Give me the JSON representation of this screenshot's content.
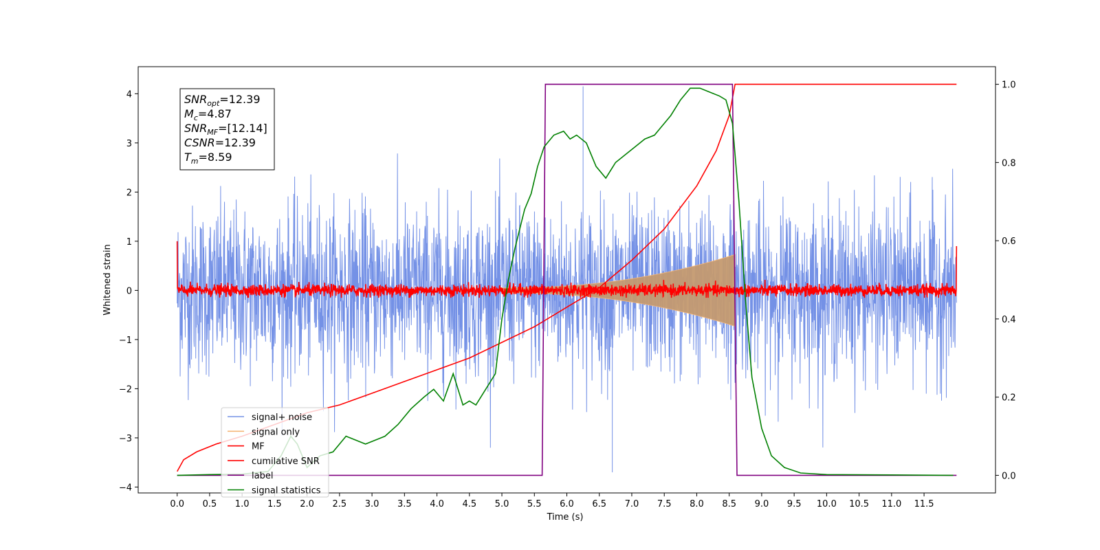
{
  "chart_data": {
    "type": "line",
    "xlabel": "Time (s)",
    "ylabel_left": "Whitened strain",
    "ylabel_right": "",
    "xlim": [
      -0.6,
      12.6
    ],
    "ylim_left": [
      -4.12,
      4.55
    ],
    "ylim_right": [
      -0.045,
      1.045
    ],
    "x_ticks": [
      0.0,
      0.5,
      1.0,
      1.5,
      2.0,
      2.5,
      3.0,
      3.5,
      4.0,
      4.5,
      5.0,
      5.5,
      6.0,
      6.5,
      7.0,
      7.5,
      8.0,
      8.5,
      9.0,
      9.5,
      10.0,
      10.5,
      11.0,
      11.5
    ],
    "x_tick_labels": [
      "0.0",
      "0.5",
      "1.0",
      "1.5",
      "2.0",
      "2.5",
      "3.0",
      "3.5",
      "4.0",
      "4.5",
      "5.0",
      "5.5",
      "6.0",
      "6.5",
      "7.0",
      "7.5",
      "8.0",
      "8.5",
      "9.0",
      "9.5",
      "10.0",
      "10.5",
      "11.0",
      "11.5"
    ],
    "y_ticks_left": [
      -4,
      -3,
      -2,
      -1,
      0,
      1,
      2,
      3,
      4
    ],
    "y_tick_labels_left": [
      "−4",
      "−3",
      "−2",
      "−1",
      "0",
      "1",
      "2",
      "3",
      "4"
    ],
    "y_ticks_right": [
      0.0,
      0.2,
      0.4,
      0.6,
      0.8,
      1.0
    ],
    "y_tick_labels_right": [
      "0.0",
      "0.2",
      "0.4",
      "0.6",
      "0.8",
      "1.0"
    ],
    "grid": false,
    "legend_placement": "lower-left",
    "annotation": {
      "lines": [
        {
          "sym": "SNR",
          "sub": "opt",
          "rest": "=12.39"
        },
        {
          "sym": "M",
          "sub": "c",
          "rest": "=4.87"
        },
        {
          "sym": "SNR",
          "sub": "MF",
          "rest": "=[12.14]"
        },
        {
          "sym": "CSNR",
          "sub": "",
          "rest": "=12.39"
        },
        {
          "sym": "T",
          "sub": "m",
          "rest": "=8.59"
        }
      ]
    },
    "series": [
      {
        "name": "signal+ noise",
        "color": "#7491e6",
        "axis": "left",
        "kind": "noise",
        "x_range": [
          0.0,
          12.0
        ],
        "amplitude_std": 0.85,
        "peak_min": -3.7,
        "peak_max": 4.15
      },
      {
        "name": "signal only",
        "color": "#f5b676",
        "axis": "left",
        "kind": "chirp",
        "x_range": [
          5.0,
          8.59
        ],
        "envelope_max": 0.68
      },
      {
        "name": "MF",
        "color": "#ff0000",
        "axis": "left",
        "kind": "noise",
        "x_range": [
          0.0,
          12.0
        ],
        "amplitude_std": 0.06,
        "edge_values": [
          1.0,
          0.9
        ]
      },
      {
        "name": "cumilative SNR",
        "color": "#ff0000",
        "axis": "right",
        "kind": "curve",
        "x_range": [
          0.0,
          12.0
        ],
        "points": [
          [
            0.0,
            0.01
          ],
          [
            0.1,
            0.04
          ],
          [
            0.3,
            0.06
          ],
          [
            0.6,
            0.08
          ],
          [
            1.0,
            0.1
          ],
          [
            1.5,
            0.13
          ],
          [
            2.0,
            0.16
          ],
          [
            2.5,
            0.18
          ],
          [
            3.0,
            0.21
          ],
          [
            3.5,
            0.24
          ],
          [
            4.0,
            0.27
          ],
          [
            4.5,
            0.3
          ],
          [
            5.0,
            0.34
          ],
          [
            5.5,
            0.38
          ],
          [
            6.0,
            0.43
          ],
          [
            6.5,
            0.48
          ],
          [
            7.0,
            0.55
          ],
          [
            7.5,
            0.63
          ],
          [
            8.0,
            0.74
          ],
          [
            8.3,
            0.83
          ],
          [
            8.5,
            0.92
          ],
          [
            8.59,
            1.0
          ],
          [
            12.0,
            1.0
          ]
        ]
      },
      {
        "name": "label",
        "color": "#800080",
        "axis": "right",
        "kind": "step",
        "points": [
          [
            0.0,
            0.0
          ],
          [
            5.62,
            0.0
          ],
          [
            5.67,
            1.0
          ],
          [
            8.55,
            1.0
          ],
          [
            8.62,
            0.0
          ],
          [
            12.0,
            0.0
          ]
        ]
      },
      {
        "name": "signal statistics",
        "color": "#008000",
        "axis": "right",
        "kind": "curve",
        "points": [
          [
            0.0,
            0.0
          ],
          [
            0.5,
            0.002
          ],
          [
            1.0,
            0.003
          ],
          [
            1.4,
            0.01
          ],
          [
            1.6,
            0.05
          ],
          [
            1.75,
            0.1
          ],
          [
            1.85,
            0.08
          ],
          [
            2.0,
            0.02
          ],
          [
            2.2,
            0.05
          ],
          [
            2.4,
            0.06
          ],
          [
            2.6,
            0.1
          ],
          [
            2.9,
            0.08
          ],
          [
            3.2,
            0.1
          ],
          [
            3.4,
            0.13
          ],
          [
            3.6,
            0.17
          ],
          [
            3.8,
            0.2
          ],
          [
            3.95,
            0.22
          ],
          [
            4.1,
            0.19
          ],
          [
            4.25,
            0.26
          ],
          [
            4.4,
            0.18
          ],
          [
            4.5,
            0.19
          ],
          [
            4.6,
            0.18
          ],
          [
            4.75,
            0.22
          ],
          [
            4.9,
            0.26
          ],
          [
            5.0,
            0.4
          ],
          [
            5.1,
            0.5
          ],
          [
            5.2,
            0.58
          ],
          [
            5.35,
            0.68
          ],
          [
            5.45,
            0.72
          ],
          [
            5.55,
            0.79
          ],
          [
            5.65,
            0.84
          ],
          [
            5.8,
            0.87
          ],
          [
            5.95,
            0.88
          ],
          [
            6.05,
            0.86
          ],
          [
            6.15,
            0.87
          ],
          [
            6.3,
            0.85
          ],
          [
            6.45,
            0.79
          ],
          [
            6.6,
            0.76
          ],
          [
            6.75,
            0.8
          ],
          [
            6.9,
            0.82
          ],
          [
            7.05,
            0.84
          ],
          [
            7.2,
            0.86
          ],
          [
            7.35,
            0.87
          ],
          [
            7.45,
            0.89
          ],
          [
            7.6,
            0.92
          ],
          [
            7.75,
            0.96
          ],
          [
            7.9,
            0.99
          ],
          [
            8.05,
            0.99
          ],
          [
            8.2,
            0.98
          ],
          [
            8.35,
            0.97
          ],
          [
            8.45,
            0.96
          ],
          [
            8.55,
            0.9
          ],
          [
            8.65,
            0.7
          ],
          [
            8.75,
            0.45
          ],
          [
            8.85,
            0.25
          ],
          [
            9.0,
            0.12
          ],
          [
            9.15,
            0.05
          ],
          [
            9.35,
            0.02
          ],
          [
            9.6,
            0.006
          ],
          [
            10.0,
            0.002
          ],
          [
            11.0,
            0.001
          ],
          [
            11.95,
            0.0
          ]
        ]
      }
    ]
  }
}
